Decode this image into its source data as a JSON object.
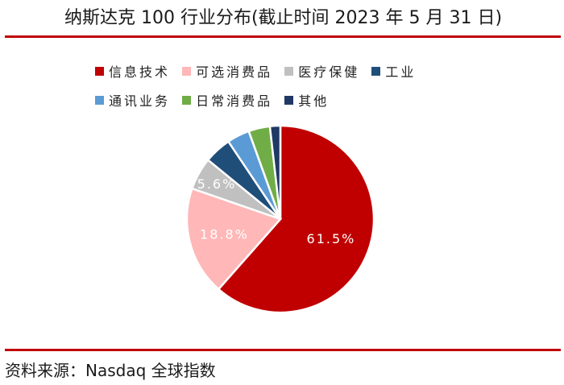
{
  "header": {
    "title": "纳斯达克 100 行业分布(截止时间 2023 年 5 月 31 日)"
  },
  "footer": {
    "source": "资料来源：Nasdaq 全球指数"
  },
  "chart_data": {
    "type": "pie",
    "title": "纳斯达克 100 行业分布(截止时间 2023 年 5 月 31 日)",
    "legend_position": "top",
    "slices": [
      {
        "name": "信息技术",
        "value": 61.5,
        "label": "61.5%",
        "color": "#c00000"
      },
      {
        "name": "可选消费品",
        "value": 18.8,
        "label": "18.8%",
        "color": "#ffb7b7"
      },
      {
        "name": "医疗保健",
        "value": 5.6,
        "label": "5.6%",
        "color": "#c0c0c0"
      },
      {
        "name": "工业",
        "value": 4.7,
        "label": "",
        "color": "#1f4e79"
      },
      {
        "name": "通讯业务",
        "value": 3.9,
        "label": "",
        "color": "#5b9bd5"
      },
      {
        "name": "日常消费品",
        "value": 3.7,
        "label": "",
        "color": "#70ad47"
      },
      {
        "name": "其他",
        "value": 1.8,
        "label": "",
        "color": "#203864"
      }
    ]
  }
}
